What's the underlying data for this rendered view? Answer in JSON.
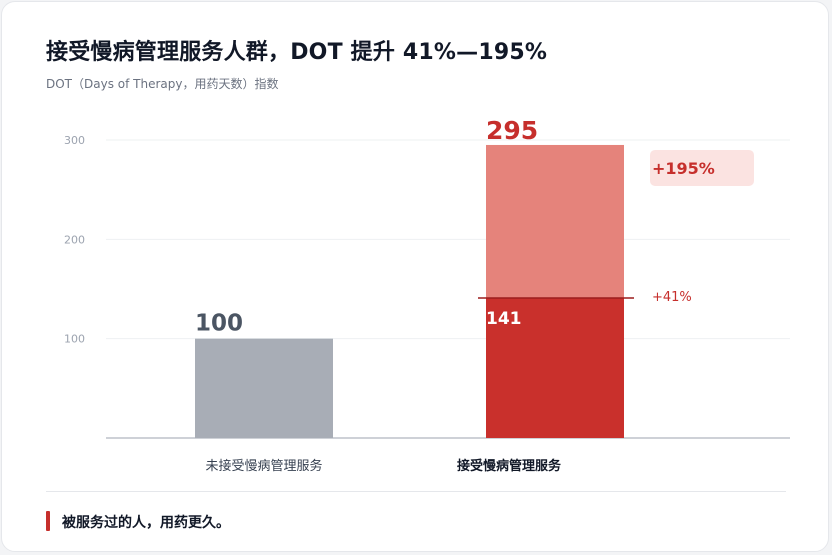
{
  "title": "接受慢病管理服务人群，DOT 提升 41%—195%",
  "subtitle": "DOT（Days of Therapy，用药天数）指数",
  "footer": {
    "note": "被服务过的人，用药更久。"
  },
  "colors": {
    "control": "#a8adb6",
    "served_base": "#c9302c",
    "served_uplift": "#e5837b",
    "accent": "#c62f2c",
    "badge_bg": "#fbe3e1"
  },
  "chart_data": {
    "type": "bar",
    "title": "接受慢病管理服务人群，DOT 提升 41%—195%",
    "subtitle": "DOT（Days of Therapy，用药天数）指数",
    "categories": [
      "未接受慢病管理服务",
      "接受慢病管理服务"
    ],
    "y_ticks": [
      100,
      200,
      300
    ],
    "ylim": [
      0,
      300
    ],
    "grid": true,
    "bars": [
      {
        "category": "未接受慢病管理服务",
        "value": 100,
        "label": "100"
      },
      {
        "category": "接受慢病管理服务",
        "value": 295,
        "label": "295",
        "lower_value": 141,
        "lower_label": "141"
      }
    ],
    "annotations": [
      {
        "text": "+195%",
        "at_value": 295,
        "style": "badge"
      },
      {
        "text": "+41%",
        "at_value": 141,
        "style": "plain"
      }
    ]
  }
}
